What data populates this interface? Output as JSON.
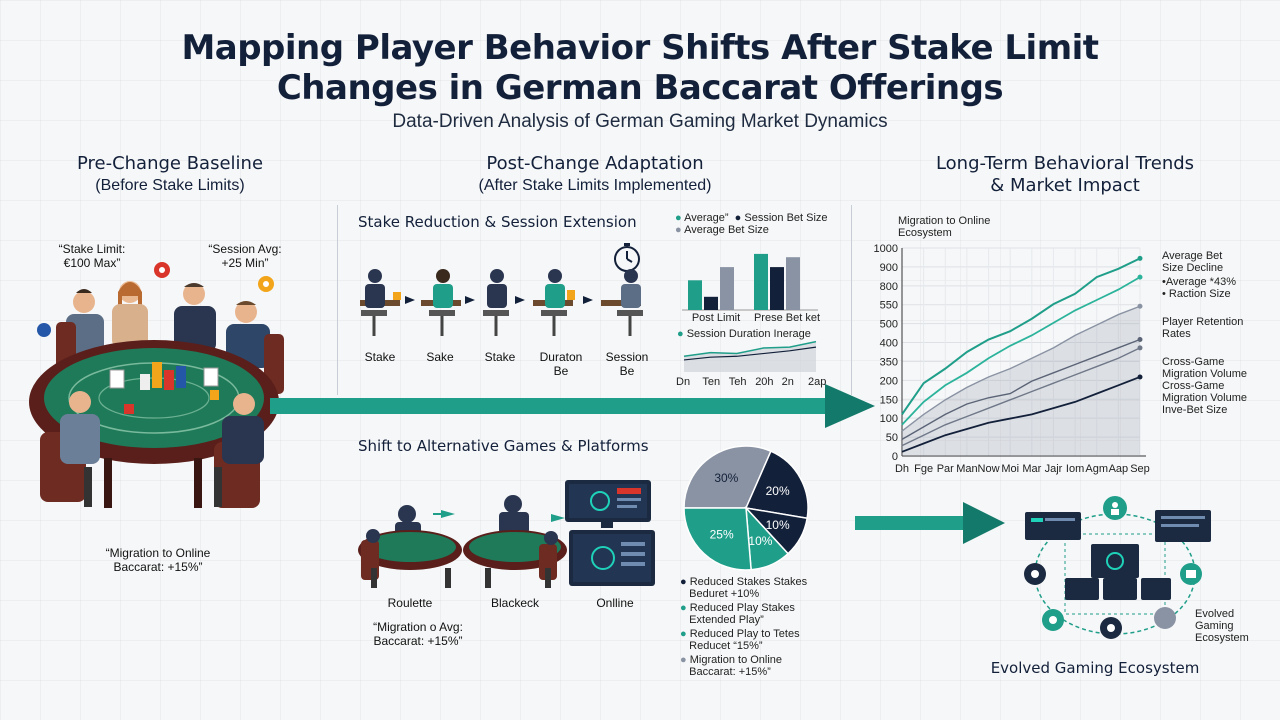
{
  "header": {
    "title_line1": "Mapping Player Behavior Shifts After Stake Limit",
    "title_line2": "Changes in German Baccarat Offerings",
    "subtitle": "Data-Driven Analysis of German Gaming Market Dynamics"
  },
  "left": {
    "head_line1": "Pre-Change Baseline",
    "head_line2": "(Before Stake Limits)",
    "quote_stake_1": "“Stake Limit:",
    "quote_stake_2": "€100 Max”",
    "quote_session_1": "“Session Avg:",
    "quote_session_2": "+25 Min”",
    "migration_1": "“Migration to Online",
    "migration_2": "Baccarat: +15%”"
  },
  "middle": {
    "head_line1": "Post-Change Adaptation",
    "head_line2": "(After Stake Limits Implemented)",
    "panel1_title": "Stake Reduction & Session Extension",
    "steps": [
      {
        "l1": "Stake",
        "l2": ""
      },
      {
        "l1": "Sake",
        "l2": ""
      },
      {
        "l1": "Stake",
        "l2": ""
      },
      {
        "l1": "Duraton",
        "l2": "Be"
      },
      {
        "l1": "Session",
        "l2": "Be"
      }
    ],
    "bar_legend_1": "Average”",
    "bar_legend_2": "Session Bet Size",
    "bar_legend_3": "Average Bet Size",
    "bar_cat_1": "Post Limit",
    "bar_cat_2": "Prese Bet ket",
    "line_legend": "Session Duration Inerage",
    "line_ticks": [
      "Dn",
      "Ten",
      "Teh",
      "20h",
      "2n",
      "2ap"
    ],
    "panel2_title": "Shift to Alternative Games & Platforms",
    "games": [
      "Roulette",
      "Blackeck",
      "Onlline"
    ],
    "migration_1": "“Migration o Avg:",
    "migration_2": "Baccarat: +15%”",
    "pie_labels": [
      "30%",
      "20%",
      "25%",
      "10%",
      "10%"
    ],
    "pie_legend": [
      {
        "l1": "Reduced Stakes Stakes",
        "l2": "Beduret +10%"
      },
      {
        "l1": "Reduced Play Stakes",
        "l2": "Extended Play”"
      },
      {
        "l1": "Reduced Play to Tetes",
        "l2": "Reducet “15%”"
      },
      {
        "l1": "Migration to Online",
        "l2": "Baccarat: +15%”"
      }
    ]
  },
  "right": {
    "head_line1": "Long-Term Behavioral Trends",
    "head_line2": "& Market Impact",
    "chart_label_1": "Migration to Online",
    "chart_label_2": "Ecosystem",
    "ecosystem_label": "Evolved Gaming Ecosystem",
    "eco_side_1": "Evolved",
    "eco_side_2": "Gaming",
    "eco_side_3": "Ecosystem",
    "line_labels": [
      {
        "l1": "Average Bet",
        "l2": "Size Decline"
      },
      {
        "l1": "•Average *43%",
        "l2": "• Raction Size"
      },
      {
        "l1": "Player Retention",
        "l2": "Rates"
      },
      {
        "l1": "Cross-Game",
        "l2": "Migration Volume"
      },
      {
        "l1": "Cross-Game",
        "l2": "Migration Volume"
      },
      {
        "l1": "Inve-Bet Size",
        "l2": ""
      }
    ]
  },
  "colors": {
    "teal": "#1f9e8a",
    "dark_teal": "#137a6b",
    "navy": "#13203a",
    "grey": "#8a93a3"
  },
  "chart_data": [
    {
      "type": "bar",
      "categories": [
        "Post Limit",
        "Prese Bet ket"
      ],
      "series": [
        {
          "name": "Average”",
          "values": [
            45,
            85
          ]
        },
        {
          "name": "Session Bet Size",
          "values": [
            20,
            65
          ]
        },
        {
          "name": "Average Bet Size",
          "values": [
            65,
            80
          ]
        }
      ],
      "ylim": [
        0,
        100
      ]
    },
    {
      "type": "area",
      "title": "Session Duration Inerage",
      "x": [
        "Dn",
        "Ten",
        "Teh",
        "20h",
        "2n",
        "2ap"
      ],
      "series": [
        {
          "name": "Session Duration Inerage",
          "values": [
            30,
            38,
            36,
            48,
            50,
            62
          ]
        },
        {
          "values": [
            22,
            28,
            30,
            36,
            42,
            50
          ]
        }
      ]
    },
    {
      "type": "pie",
      "labels": [
        "30%",
        "20%",
        "25%",
        "10%",
        "10%"
      ],
      "values": [
        30,
        20,
        25,
        10,
        10
      ]
    },
    {
      "type": "line",
      "x": [
        "Dh",
        "Fge",
        "Par",
        "Man",
        "Now",
        "Moi",
        "Mar",
        "Jajr",
        "Iom",
        "Agm",
        "Aap",
        "Sep"
      ],
      "ylim": [
        0,
        1000
      ],
      "yticks": [
        "0",
        "50",
        "100",
        "150",
        "200",
        "350",
        "400",
        "500",
        "550",
        "800",
        "900",
        "1000"
      ],
      "series": [
        {
          "values": [
            0.2,
            0.35,
            0.42,
            0.5,
            0.56,
            0.6,
            0.66,
            0.73,
            0.78,
            0.86,
            0.9,
            0.95
          ]
        },
        {
          "values": [
            0.15,
            0.26,
            0.34,
            0.4,
            0.47,
            0.53,
            0.58,
            0.64,
            0.7,
            0.75,
            0.8,
            0.86
          ]
        },
        {
          "values": [
            0.12,
            0.2,
            0.27,
            0.33,
            0.38,
            0.42,
            0.47,
            0.52,
            0.58,
            0.63,
            0.68,
            0.72
          ]
        },
        {
          "values": [
            0.08,
            0.14,
            0.2,
            0.25,
            0.28,
            0.3,
            0.36,
            0.4,
            0.44,
            0.48,
            0.52,
            0.56
          ]
        },
        {
          "values": [
            0.05,
            0.1,
            0.15,
            0.19,
            0.23,
            0.27,
            0.31,
            0.35,
            0.39,
            0.43,
            0.47,
            0.52
          ]
        },
        {
          "values": [
            0.02,
            0.06,
            0.1,
            0.13,
            0.16,
            0.18,
            0.2,
            0.23,
            0.26,
            0.3,
            0.34,
            0.38
          ]
        }
      ]
    }
  ]
}
